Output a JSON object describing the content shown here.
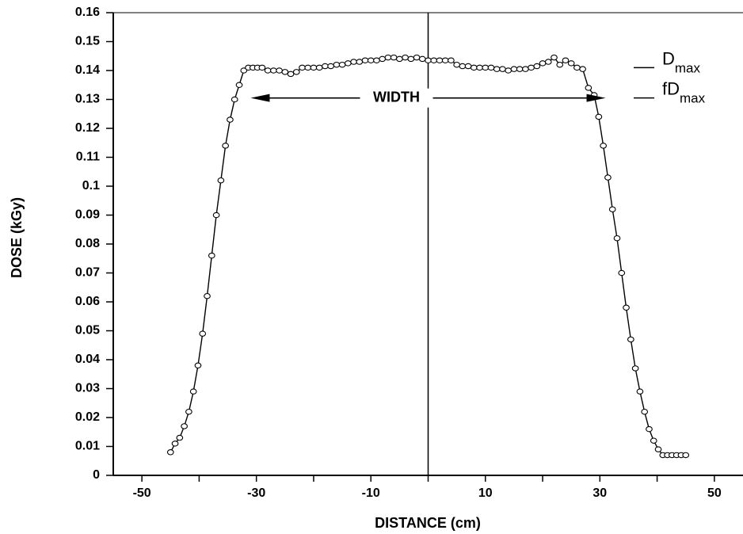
{
  "chart_data": {
    "type": "line",
    "title": "",
    "xlabel": "DISTANCE (cm)",
    "ylabel": "DOSE (kGy)",
    "xlim": [
      -55,
      55
    ],
    "ylim": [
      0,
      0.16
    ],
    "x_ticks": [
      -50,
      -30,
      -10,
      10,
      30,
      50
    ],
    "x_tick_labels": [
      "-50",
      "-30",
      "-10",
      "10",
      "30",
      "50"
    ],
    "y_ticks": [
      0,
      0.01,
      0.02,
      0.03,
      0.04,
      0.05,
      0.06,
      0.07,
      0.08,
      0.09,
      0.1,
      0.11,
      0.12,
      0.13,
      0.14,
      0.15,
      0.16
    ],
    "y_tick_labels": [
      "0",
      "0.01",
      "0.02",
      "0.03",
      "0.04",
      "0.05",
      "0.06",
      "0.07",
      "0.08",
      "0.09",
      "0.1",
      "0.11",
      "0.12",
      "0.13",
      "0.14",
      "0.15",
      "0.16"
    ],
    "grid": false,
    "legend_position": "right",
    "legend": [
      {
        "main": "D",
        "sub": "max",
        "y": 0.141
      },
      {
        "main": "fD",
        "sub": "max",
        "y": 0.1305
      }
    ],
    "annotation": {
      "text": "WIDTH",
      "x_from": -31,
      "x_to": 31,
      "y": 0.1305
    },
    "vertical_line_x": 0,
    "series": [
      {
        "x": [
          -45,
          -44.2,
          -43.4,
          -42.6,
          -41.8,
          -41,
          -40.2,
          -39.4,
          -38.6,
          -37.8,
          -37,
          -36.2,
          -35.4,
          -34.6,
          -33.8,
          -33,
          -32.2,
          -31.4,
          -30.6,
          -29.8,
          -29,
          -28,
          -27,
          -26,
          -25,
          -24,
          -23,
          -22,
          -21,
          -20,
          -19,
          -18,
          -17,
          -16,
          -15,
          -14,
          -13,
          -12,
          -11,
          -10,
          -9,
          -8,
          -7,
          -6,
          -5,
          -4,
          -3,
          -2,
          -1,
          0,
          1,
          2,
          3,
          4,
          5,
          6,
          7,
          8,
          9,
          10,
          11,
          12,
          13,
          14,
          15,
          16,
          17,
          18,
          19,
          20,
          21,
          22,
          23,
          24,
          25,
          26,
          27,
          28,
          29,
          29.8,
          30.6,
          31.4,
          32.2,
          33,
          33.8,
          34.6,
          35.4,
          36.2,
          37,
          37.8,
          38.6,
          39.4,
          40.2,
          41,
          41.8,
          42.6,
          43.4,
          44.2,
          45
        ],
        "y": [
          0.008,
          0.011,
          0.013,
          0.017,
          0.022,
          0.029,
          0.038,
          0.049,
          0.062,
          0.076,
          0.09,
          0.102,
          0.114,
          0.123,
          0.13,
          0.135,
          0.14,
          0.141,
          0.141,
          0.141,
          0.141,
          0.14,
          0.14,
          0.14,
          0.1395,
          0.1388,
          0.1395,
          0.141,
          0.141,
          0.141,
          0.141,
          0.1415,
          0.1415,
          0.142,
          0.142,
          0.1425,
          0.143,
          0.143,
          0.1435,
          0.1435,
          0.1435,
          0.144,
          0.1445,
          0.1445,
          0.144,
          0.1445,
          0.144,
          0.1445,
          0.144,
          0.1435,
          0.1435,
          0.1435,
          0.1435,
          0.1435,
          0.142,
          0.1415,
          0.1415,
          0.141,
          0.141,
          0.141,
          0.141,
          0.1405,
          0.1405,
          0.14,
          0.1405,
          0.1405,
          0.1405,
          0.141,
          0.1415,
          0.1425,
          0.143,
          0.1445,
          0.142,
          0.1435,
          0.1425,
          0.141,
          0.1405,
          0.134,
          0.1315,
          0.124,
          0.114,
          0.103,
          0.092,
          0.082,
          0.07,
          0.058,
          0.047,
          0.037,
          0.029,
          0.022,
          0.016,
          0.012,
          0.009,
          0.007,
          0.007,
          0.007,
          0.007,
          0.007,
          0.007
        ]
      }
    ]
  }
}
